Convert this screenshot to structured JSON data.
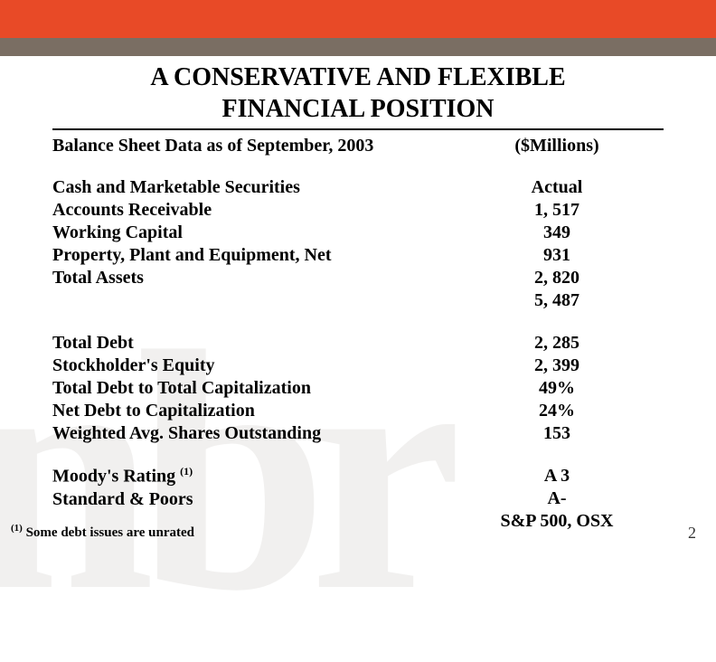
{
  "colors": {
    "top_bar": "#e84a27",
    "sub_bar": "#7a6e63",
    "background": "#ffffff",
    "watermark": "rgba(140,130,120,0.12)",
    "text": "#000000"
  },
  "watermark_text": "nbr",
  "title_line1": "A CONSERVATIVE AND FLEXIBLE",
  "title_line2": "FINANCIAL POSITION",
  "header": {
    "left": "Balance Sheet Data as of September, 2003",
    "right": "($Millions)"
  },
  "section1": {
    "value_heading": "Actual",
    "rows": [
      {
        "label": "Cash and Marketable Securities",
        "value": "1, 517"
      },
      {
        "label": "Accounts Receivable",
        "value": "349"
      },
      {
        "label": "Working Capital",
        "value": "931"
      },
      {
        "label": "Property, Plant and Equipment, Net",
        "value": "2, 820"
      },
      {
        "label": "Total Assets",
        "value": "5, 487"
      }
    ]
  },
  "section2": {
    "rows": [
      {
        "label": "Total Debt",
        "value": "2, 285"
      },
      {
        "label": "Stockholder's Equity",
        "value": "2, 399"
      },
      {
        "label": "Total Debt to Total Capitalization",
        "value": "49%"
      },
      {
        "label": "Net Debt to Capitalization",
        "value": "24%"
      },
      {
        "label": "Weighted Avg. Shares Outstanding",
        "value": "153"
      }
    ]
  },
  "section3": {
    "rows": [
      {
        "label": "Moody's Rating",
        "sup": "(1)",
        "value": "A 3"
      },
      {
        "label": "Standard & Poors",
        "value": "A-"
      }
    ],
    "extra_value": "S&P 500, OSX"
  },
  "footnote": {
    "sup": "(1)",
    "text": " Some debt issues are unrated"
  },
  "page_number": "2"
}
